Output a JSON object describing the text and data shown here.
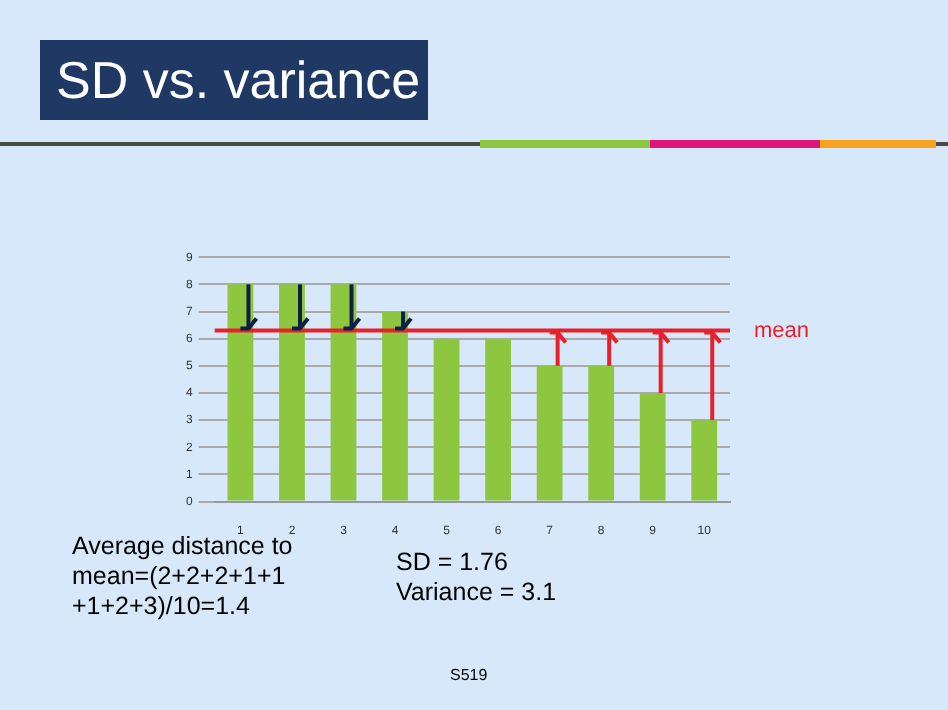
{
  "chart_data": {
    "type": "bar",
    "title": "SD vs. variance",
    "categories": [
      "1",
      "2",
      "3",
      "4",
      "5",
      "6",
      "7",
      "8",
      "9",
      "10"
    ],
    "values": [
      8,
      8,
      8,
      7,
      6,
      6,
      5,
      5,
      4,
      3
    ],
    "color": "#8dc63f",
    "ylim": [
      0,
      9
    ],
    "yticks": [
      0,
      1,
      2,
      3,
      4,
      5,
      6,
      7,
      8,
      9
    ],
    "grid": "y",
    "ref_lines": [
      {
        "axis": "y",
        "value": 6.3,
        "label": "mean",
        "color": "#e8202a"
      }
    ],
    "annotations": [
      "Average distance to\nmean=(2+2+2+1+1\n+1+2+3)/10=1.4",
      "SD = 1.76\nVariance = 3.1",
      "S519"
    ]
  }
}
